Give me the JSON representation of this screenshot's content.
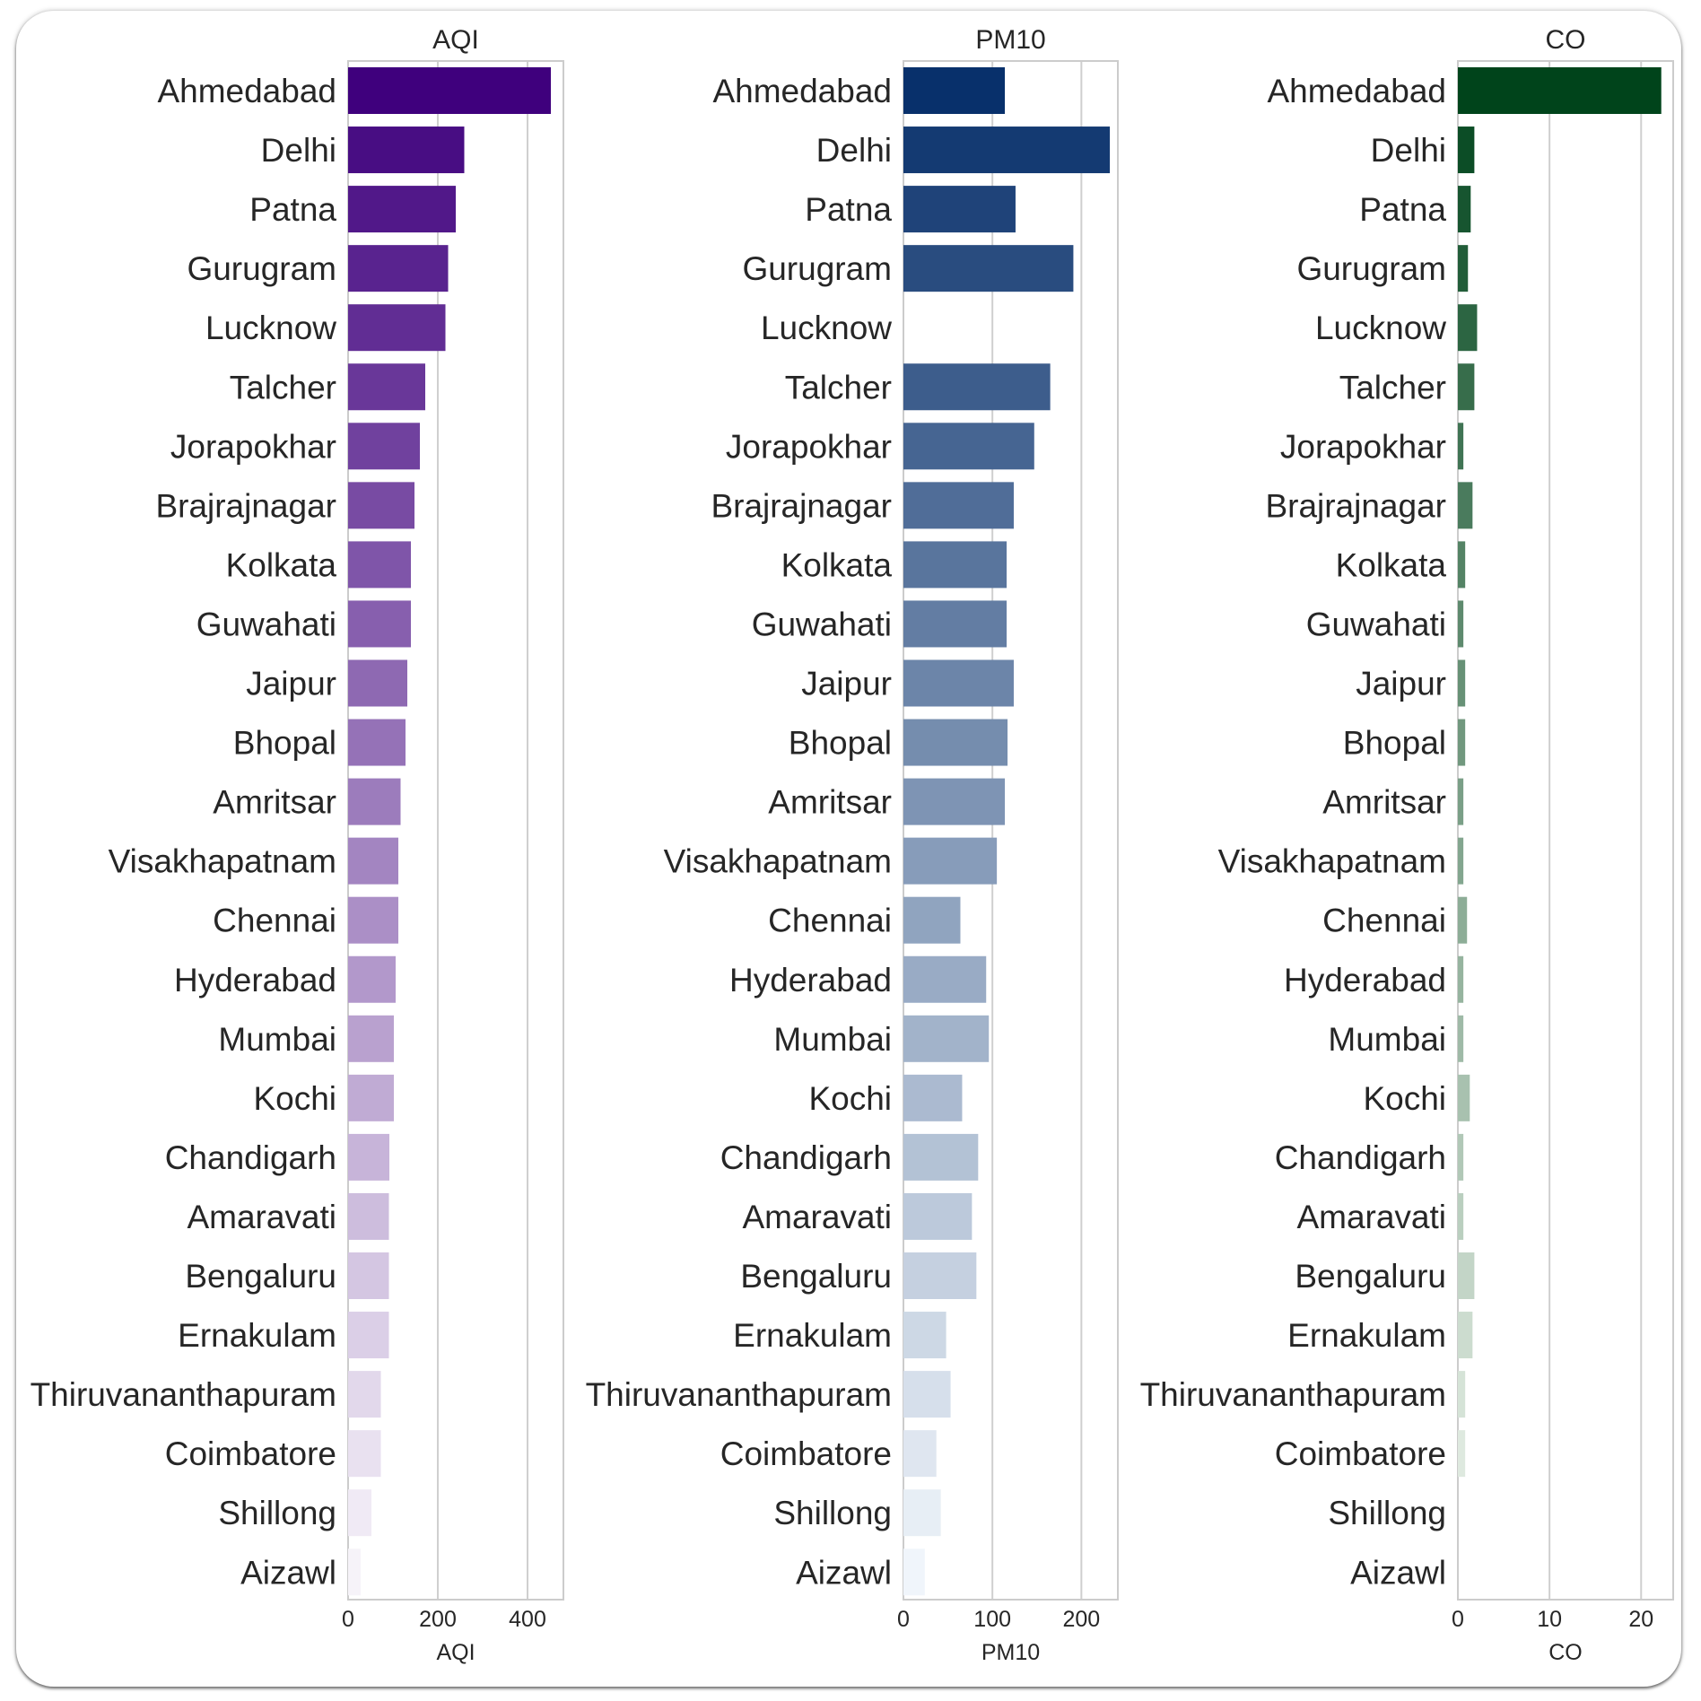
{
  "chart_data": [
    {
      "type": "bar",
      "orientation": "horizontal",
      "title": "AQI",
      "xlabel": "AQI",
      "xlim": [
        0,
        480
      ],
      "xticks": [
        0,
        200,
        400
      ],
      "grid": true,
      "palette": [
        "#3f007d",
        "#fcfbfd"
      ],
      "categories": [
        "Ahmedabad",
        "Delhi",
        "Patna",
        "Gurugram",
        "Lucknow",
        "Talcher",
        "Jorapokhar",
        "Brajrajnagar",
        "Kolkata",
        "Guwahati",
        "Jaipur",
        "Bhopal",
        "Amritsar",
        "Visakhapatnam",
        "Chennai",
        "Hyderabad",
        "Mumbai",
        "Kochi",
        "Chandigarh",
        "Amaravati",
        "Bengaluru",
        "Ernakulam",
        "Thiruvananthapuram",
        "Coimbatore",
        "Shillong",
        "Aizawl"
      ],
      "values": [
        452,
        259,
        240,
        223,
        217,
        172,
        160,
        148,
        140,
        140,
        132,
        128,
        117,
        112,
        112,
        106,
        102,
        102,
        92,
        91,
        91,
        91,
        73,
        73,
        52,
        28
      ]
    },
    {
      "type": "bar",
      "orientation": "horizontal",
      "title": "PM10",
      "xlabel": "PM10",
      "xlim": [
        0,
        241
      ],
      "xticks": [
        0,
        100,
        200
      ],
      "grid": true,
      "palette": [
        "#08306b",
        "#f7fbff"
      ],
      "categories": [
        "Ahmedabad",
        "Delhi",
        "Patna",
        "Gurugram",
        "Lucknow",
        "Talcher",
        "Jorapokhar",
        "Brajrajnagar",
        "Kolkata",
        "Guwahati",
        "Jaipur",
        "Bhopal",
        "Amritsar",
        "Visakhapatnam",
        "Chennai",
        "Hyderabad",
        "Mumbai",
        "Kochi",
        "Chandigarh",
        "Amaravati",
        "Bengaluru",
        "Ernakulam",
        "Thiruvananthapuram",
        "Coimbatore",
        "Shillong",
        "Aizawl"
      ],
      "values": [
        114,
        232,
        126,
        191,
        null,
        165,
        147,
        124,
        116,
        116,
        124,
        117,
        114,
        105,
        64,
        93,
        96,
        66,
        84,
        77,
        82,
        48,
        53,
        37,
        42,
        24
      ]
    },
    {
      "type": "bar",
      "orientation": "horizontal",
      "title": "CO",
      "xlabel": "CO",
      "xlim": [
        0,
        23.5
      ],
      "xticks": [
        0,
        10,
        20
      ],
      "grid": true,
      "palette": [
        "#00441b",
        "#f7fcf5"
      ],
      "categories": [
        "Ahmedabad",
        "Delhi",
        "Patna",
        "Gurugram",
        "Lucknow",
        "Talcher",
        "Jorapokhar",
        "Brajrajnagar",
        "Kolkata",
        "Guwahati",
        "Jaipur",
        "Bhopal",
        "Amritsar",
        "Visakhapatnam",
        "Chennai",
        "Hyderabad",
        "Mumbai",
        "Kochi",
        "Chandigarh",
        "Amaravati",
        "Bengaluru",
        "Ernakulam",
        "Thiruvananthapuram",
        "Coimbatore",
        "Shillong",
        "Aizawl"
      ],
      "values": [
        22.2,
        1.8,
        1.4,
        1.1,
        2.1,
        1.8,
        0.6,
        1.6,
        0.8,
        0.6,
        0.8,
        0.8,
        0.6,
        0.6,
        1.0,
        0.6,
        0.6,
        1.3,
        0.6,
        0.6,
        1.8,
        1.6,
        0.8,
        0.8,
        0.0,
        0.0
      ]
    }
  ]
}
